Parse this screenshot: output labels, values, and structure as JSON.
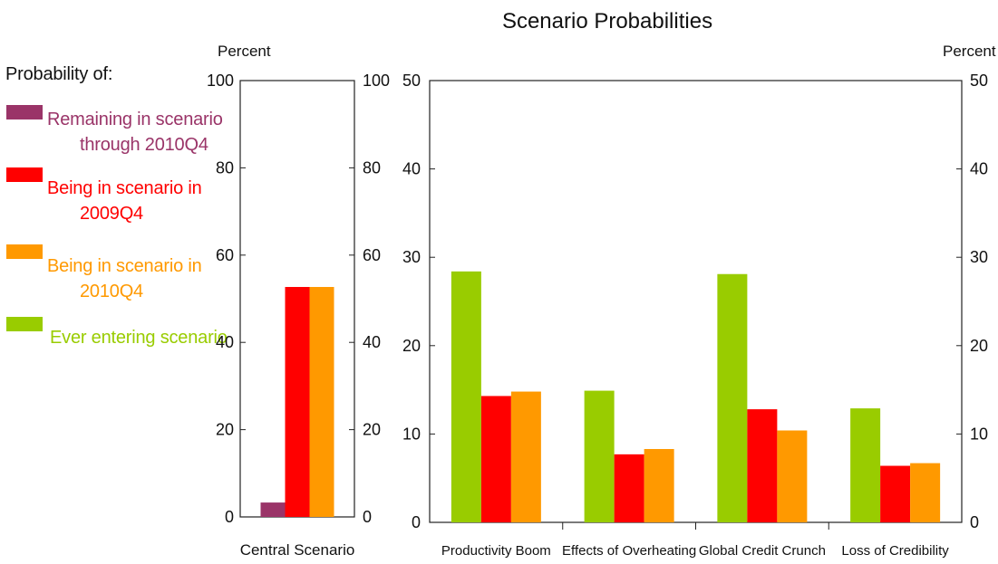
{
  "title": "Scenario Probabilities",
  "legend": {
    "heading": "Probability of:",
    "items": [
      {
        "lines": [
          "Remaining in scenario",
          "through 2010Q4"
        ],
        "color": "#9a3468"
      },
      {
        "lines": [
          "Being in scenario in",
          "2009Q4"
        ],
        "color": "#ff0000"
      },
      {
        "lines": [
          "Being in scenario in",
          "2010Q4"
        ],
        "color": "#ff9900"
      },
      {
        "lines": [
          "Ever entering scenario"
        ],
        "color": "#99cc00"
      }
    ]
  },
  "chart_data": [
    {
      "type": "bar",
      "categories": [
        "Central Scenario"
      ],
      "ylabel": "Percent",
      "ylim": [
        0,
        100
      ],
      "yticks": [
        0,
        20,
        40,
        60,
        80,
        100
      ],
      "right_yticks": [
        0,
        20,
        40,
        60,
        80,
        100
      ],
      "series": [
        {
          "name": "Remaining in scenario through 2010Q4",
          "values": [
            3.3
          ],
          "color": "#9a3468"
        },
        {
          "name": "Being in scenario in 2009Q4",
          "values": [
            52.7
          ],
          "color": "#ff0000"
        },
        {
          "name": "Being in scenario in 2010Q4",
          "values": [
            52.7
          ],
          "color": "#ff9900"
        }
      ]
    },
    {
      "type": "bar",
      "categories": [
        "Productivity Boom",
        "Effects of Overheating",
        "Global Credit Crunch",
        "Loss of Credibility"
      ],
      "ylabel": "Percent",
      "ylim": [
        0,
        50
      ],
      "yticks": [
        0,
        10,
        20,
        30,
        40,
        50
      ],
      "right_yticks": [
        0,
        10,
        20,
        30,
        40,
        50
      ],
      "series": [
        {
          "name": "Ever entering scenario",
          "values": [
            28.4,
            14.9,
            28.1,
            12.9
          ],
          "color": "#99cc00"
        },
        {
          "name": "Being in scenario in 2009Q4",
          "values": [
            14.3,
            7.7,
            12.8,
            6.4
          ],
          "color": "#ff0000"
        },
        {
          "name": "Being in scenario in 2010Q4",
          "values": [
            14.8,
            8.3,
            10.4,
            6.7
          ],
          "color": "#ff9900"
        }
      ]
    }
  ]
}
